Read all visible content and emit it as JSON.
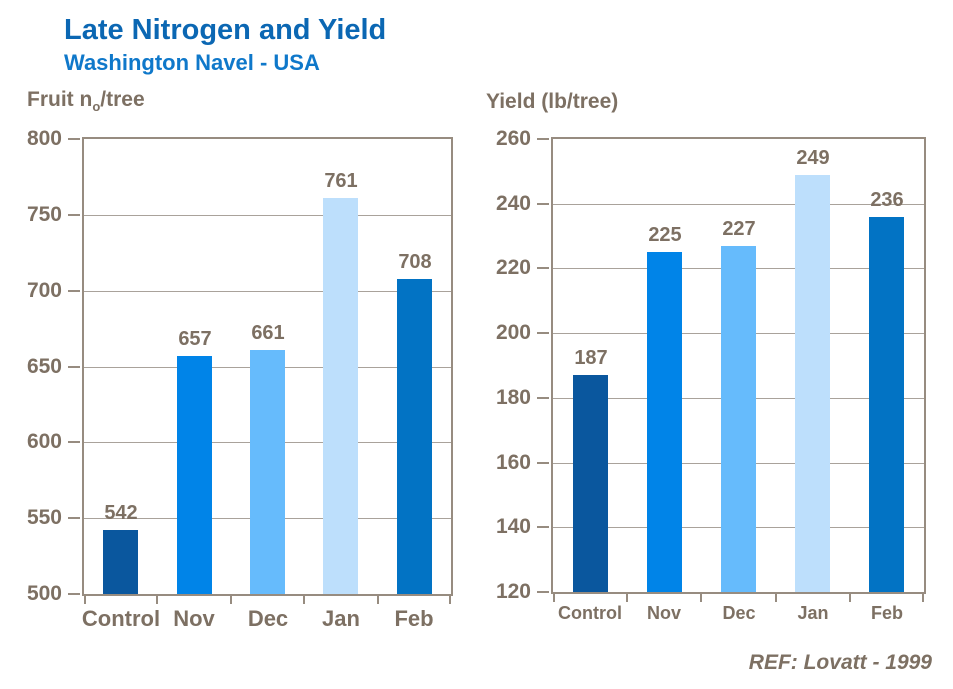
{
  "title": "Late Nitrogen and Yield",
  "subtitle": "Washington Navel - USA",
  "footer_ref": "REF: Lovatt - 1999",
  "colors": {
    "title_blue": "#0B67B3",
    "subtitle_blue": "#0F78CA",
    "text_brown": "#7D7063",
    "axis_frame": "#978C80",
    "gridline": "#A9A29B",
    "bar_palette": [
      "#0A579E",
      "#0084E8",
      "#66BBFC",
      "#BDDFFC",
      "#0273C4"
    ]
  },
  "chart_data": [
    {
      "type": "bar",
      "title_pre": "Fruit n",
      "title_sub": "o",
      "title_post": "/tree",
      "categories": [
        "Control",
        "Nov",
        "Dec",
        "Jan",
        "Feb"
      ],
      "values": [
        542,
        657,
        661,
        761,
        708
      ],
      "ylim": [
        500,
        800
      ],
      "yticks": [
        500,
        550,
        600,
        650,
        700,
        750,
        800
      ],
      "grid": true,
      "legend": "none",
      "data_labels": [
        "542",
        "657",
        "661",
        "761",
        "708"
      ]
    },
    {
      "type": "bar",
      "title": "Yield (lb/tree)",
      "categories": [
        "Control",
        "Nov",
        "Dec",
        "Jan",
        "Feb"
      ],
      "values": [
        187,
        225,
        227,
        249,
        236
      ],
      "ylim": [
        120,
        260
      ],
      "yticks": [
        120,
        140,
        160,
        180,
        200,
        220,
        240,
        260
      ],
      "grid": true,
      "legend": "none",
      "data_labels": [
        "187",
        "225",
        "227",
        "249",
        "236"
      ]
    }
  ]
}
